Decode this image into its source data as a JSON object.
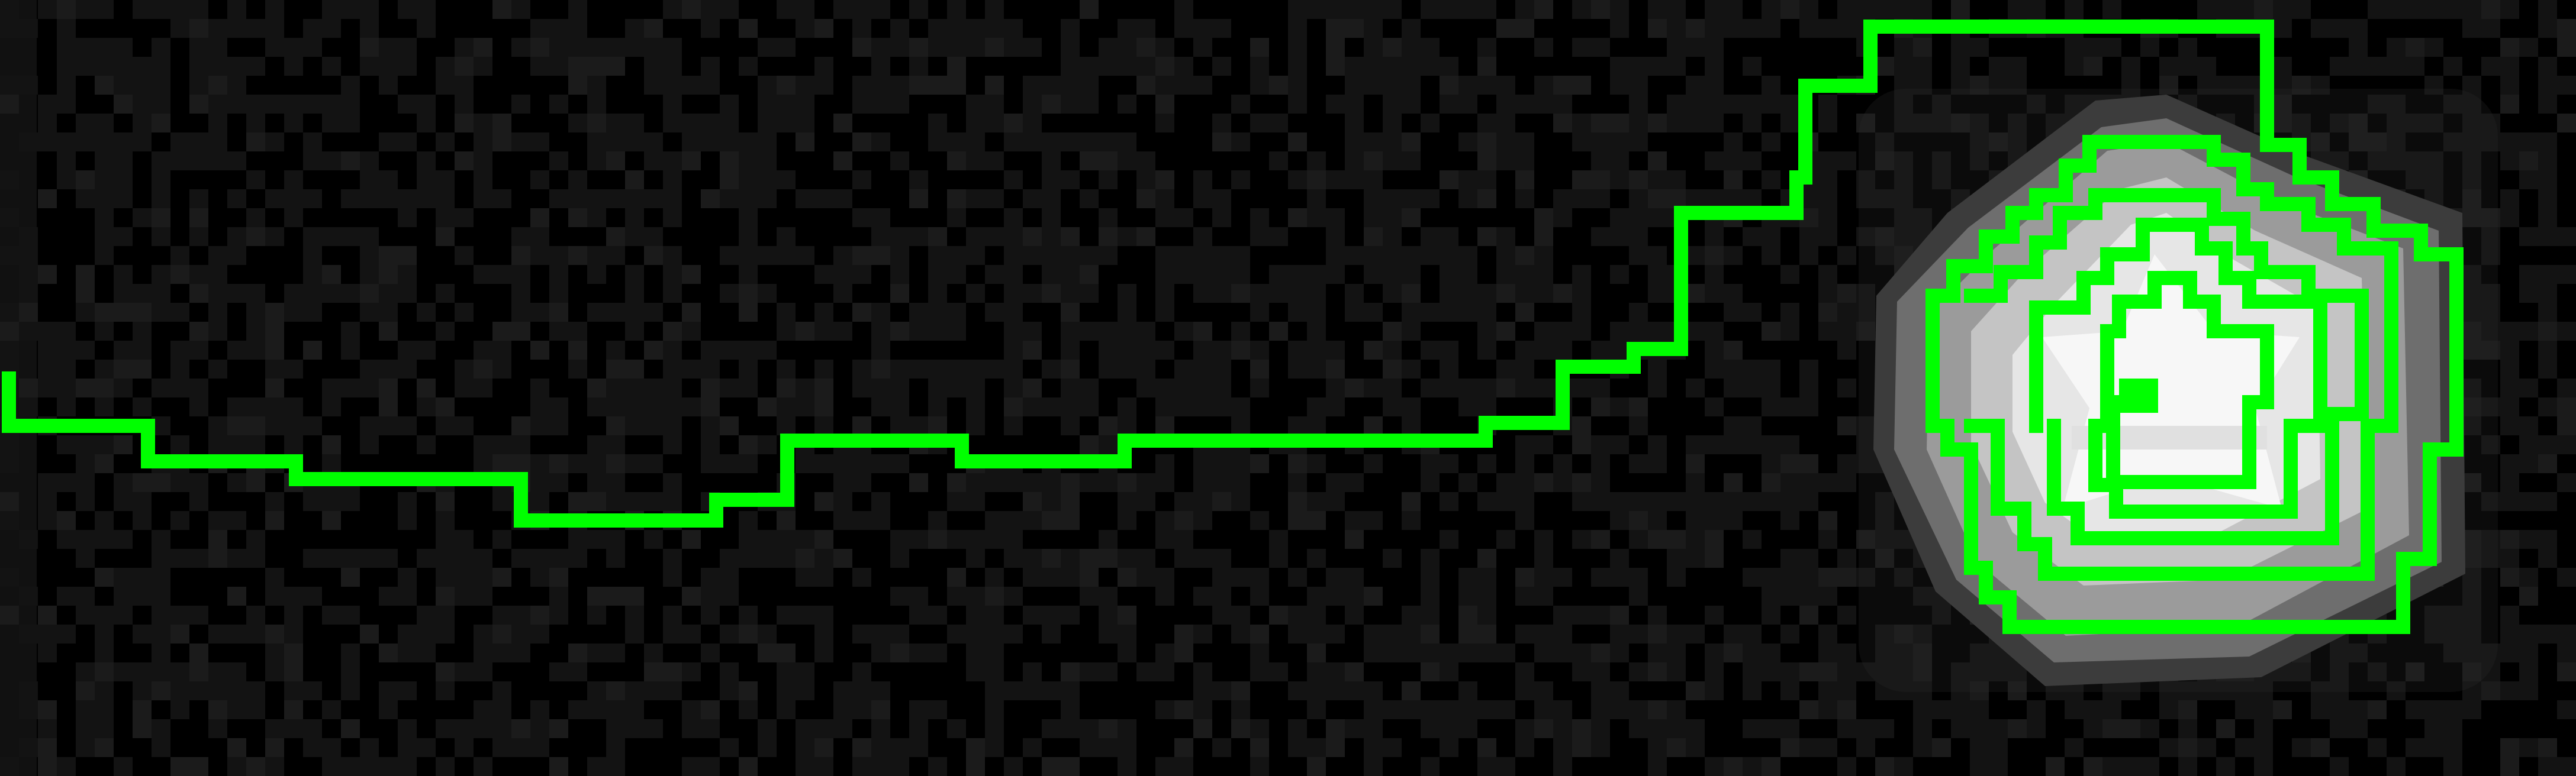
{
  "scene": {
    "name": "pixel-maze-path-to-star",
    "colors": {
      "background": "#000000",
      "floor_tile": "#131313",
      "floor_tile_alt": "#1b1b1b",
      "edge_bar": "#111111",
      "path": "#00ff00",
      "glow_1": "#3c3c3c",
      "glow_2": "#6e6e6e",
      "glow_3": "#9b9b9b",
      "glow_4": "#c4c4c4",
      "glow_5": "#e6e6e6",
      "star_core": "#f7f7f7"
    },
    "icons": {
      "goal": "star-icon",
      "player": "player-marker-icon"
    }
  }
}
